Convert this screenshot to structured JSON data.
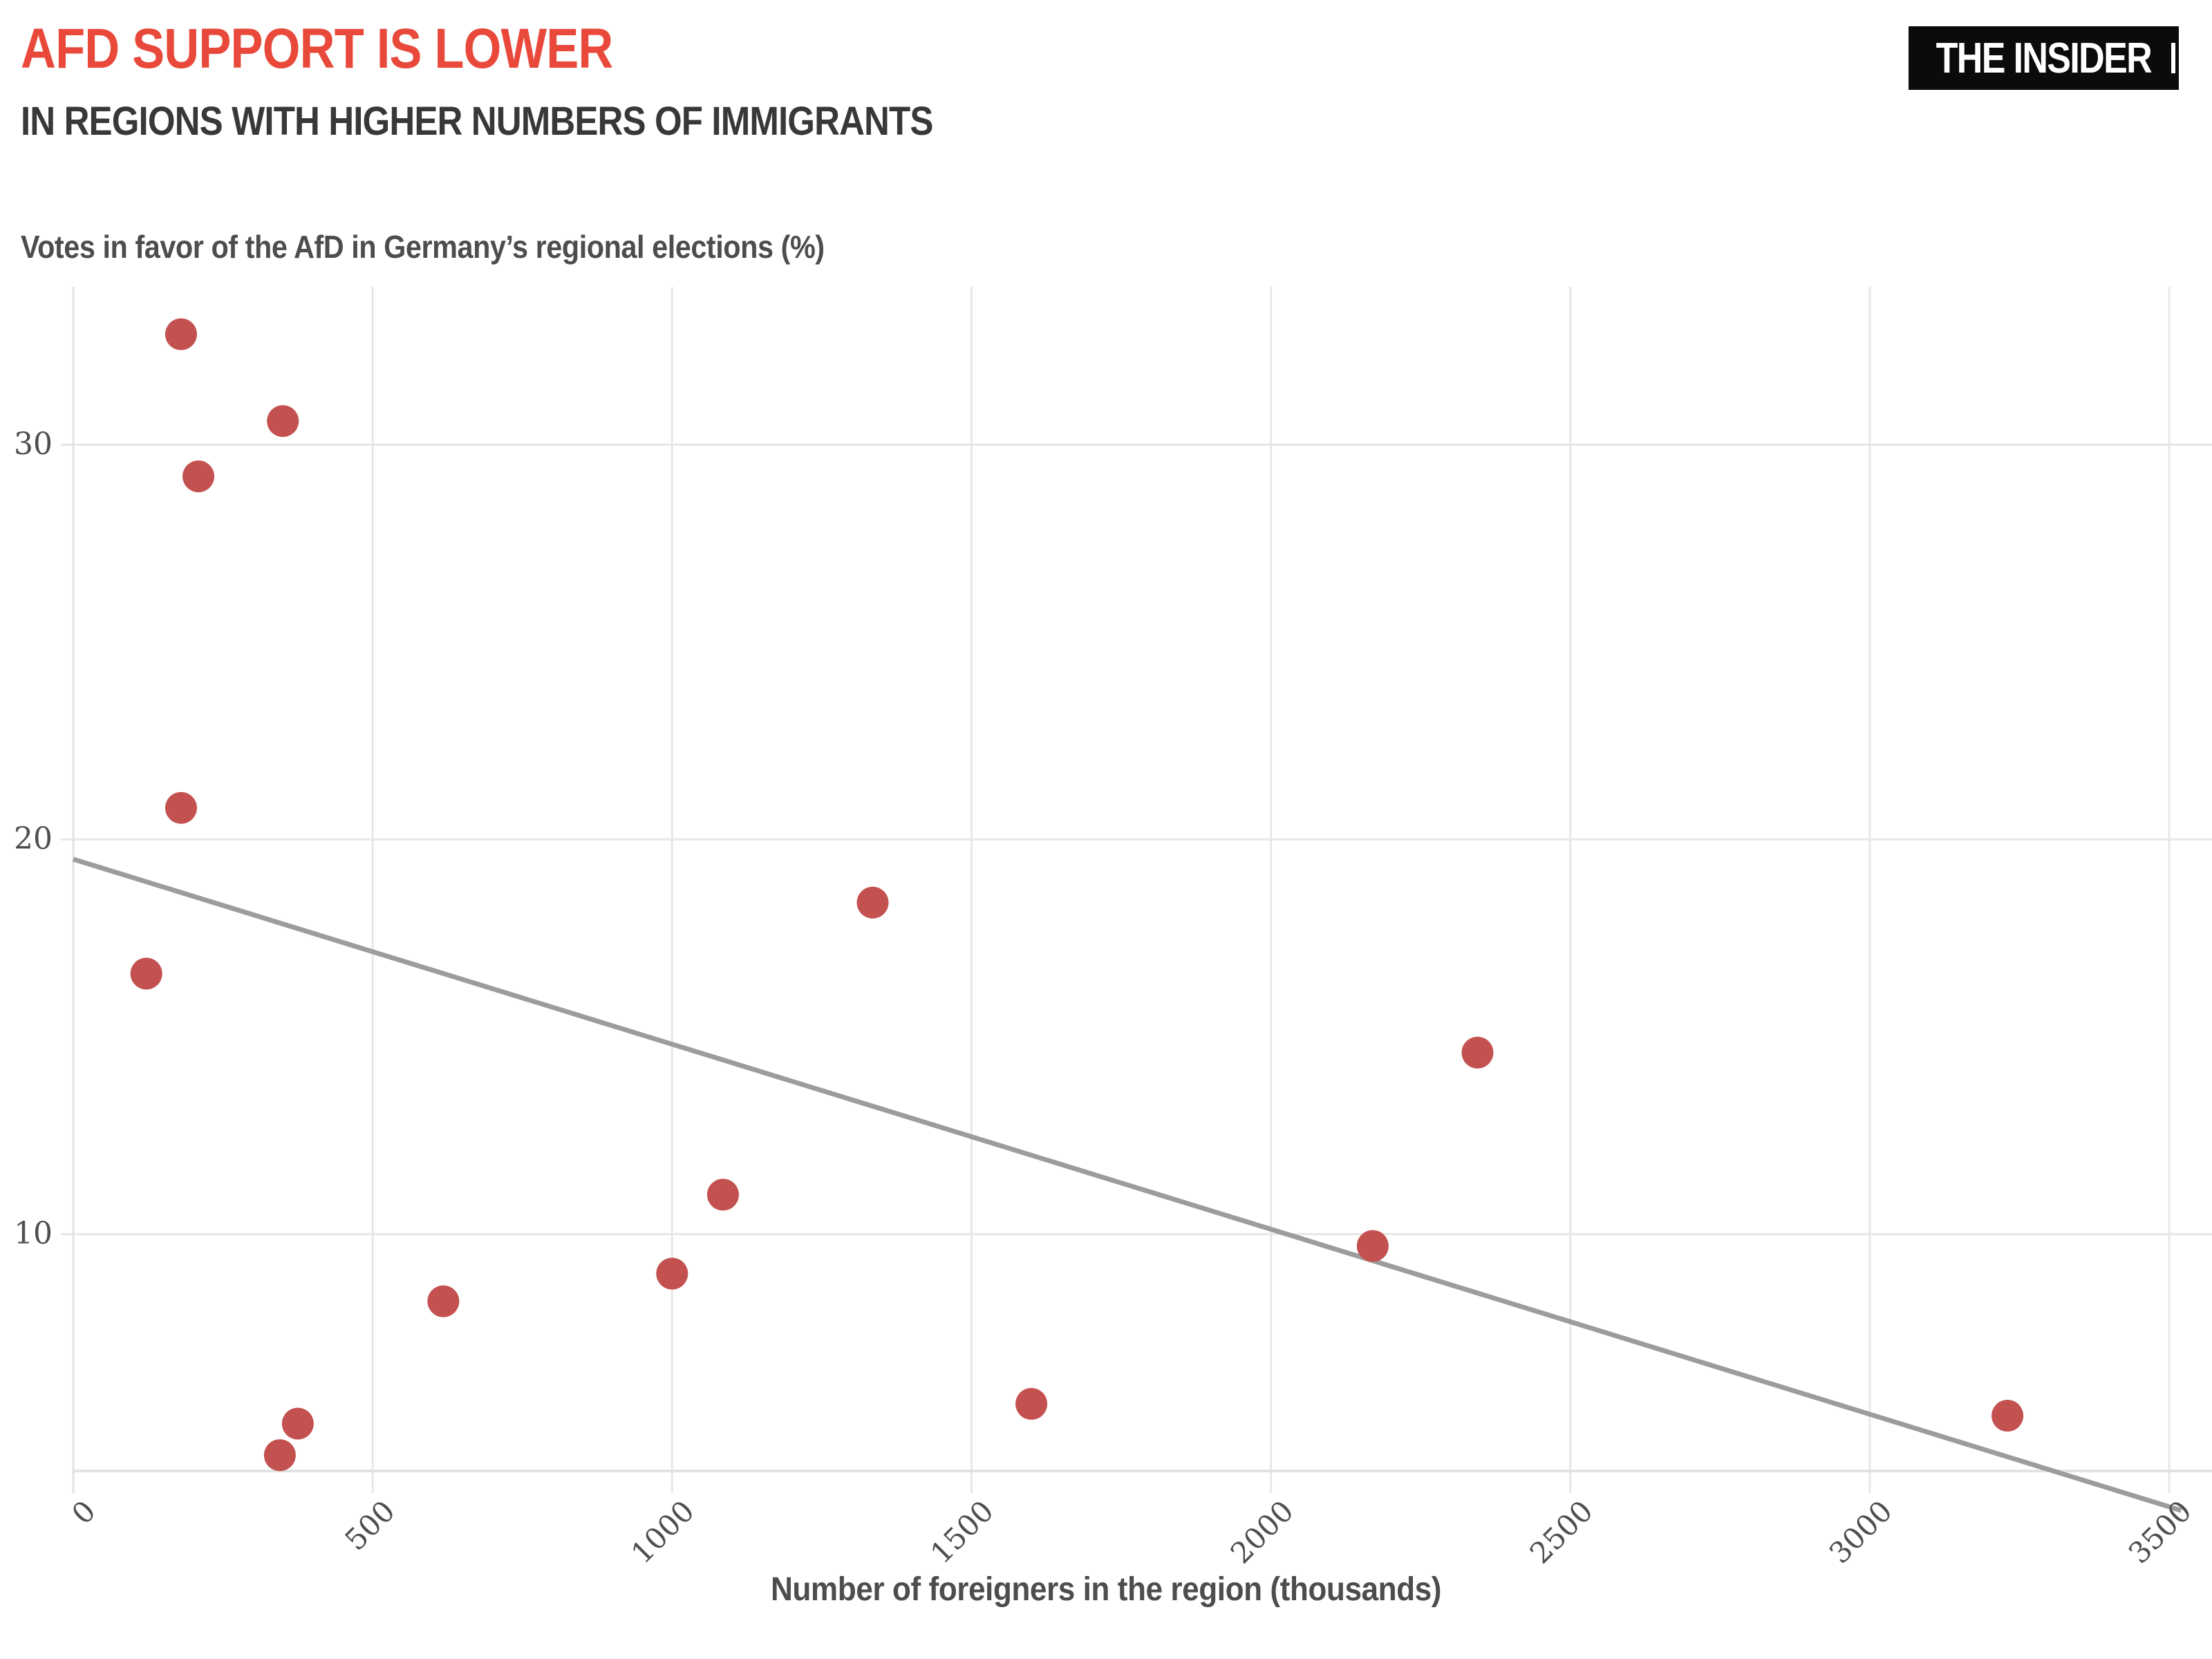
{
  "header": {
    "title": "AFD SUPPORT IS LOWER",
    "subtitle": "IN REGIONS WITH HIGHER NUMBERS OF IMMIGRANTS"
  },
  "logo": {
    "text": "THE INSIDER"
  },
  "chart_data": {
    "type": "scatter",
    "title": "AFD SUPPORT IS LOWER IN REGIONS WITH HIGHER NUMBERS OF IMMIGRANTS",
    "y_axis_note": "Votes in favor of the AfD in Germany’s regional elections (%)",
    "xlabel": "Number of foreigners in the region (thousands)",
    "ylabel": "Votes in favor of the AfD (%)",
    "x_ticks": [
      0,
      500,
      1000,
      1500,
      2000,
      2500,
      3000,
      3500
    ],
    "y_ticks": [
      30,
      20,
      10
    ],
    "xlim": [
      0,
      3570
    ],
    "ylim": [
      4,
      34
    ],
    "grid": true,
    "legend": "none",
    "points": [
      {
        "x": 180,
        "y": 32.8
      },
      {
        "x": 350,
        "y": 30.6
      },
      {
        "x": 209,
        "y": 29.2
      },
      {
        "x": 180,
        "y": 20.8
      },
      {
        "x": 122,
        "y": 16.6
      },
      {
        "x": 1335,
        "y": 18.4
      },
      {
        "x": 2345,
        "y": 14.6
      },
      {
        "x": 1085,
        "y": 11.0
      },
      {
        "x": 2170,
        "y": 9.7
      },
      {
        "x": 1000,
        "y": 9.0
      },
      {
        "x": 618,
        "y": 8.3
      },
      {
        "x": 1600,
        "y": 5.7
      },
      {
        "x": 375,
        "y": 5.2
      },
      {
        "x": 3230,
        "y": 5.4
      },
      {
        "x": 345,
        "y": 4.4
      }
    ],
    "trend_line": {
      "x1": 0,
      "y1": 19.5,
      "x2": 3520,
      "y2": 3.0
    },
    "colors": {
      "dot": "#C35150",
      "trend": "#9C9C9C",
      "grid": "#E7E7E7",
      "axis": "#E2E2E2",
      "title_red": "#E8493A",
      "subtitle_dark": "#383838",
      "tick_text": "#4E4E4E"
    }
  }
}
